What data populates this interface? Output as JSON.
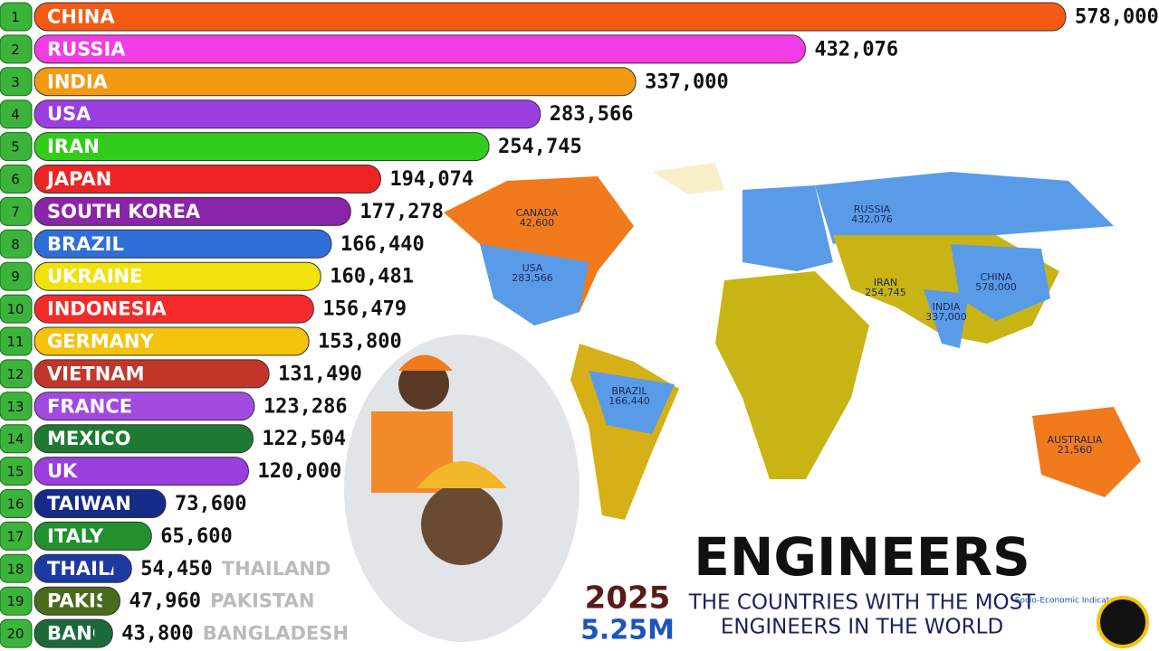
{
  "chart_data": {
    "type": "bar",
    "orientation": "horizontal",
    "title": "ENGINEERS",
    "subtitle": [
      "THE COUNTRIES WITH THE MOST",
      "ENGINEERS IN THE WORLD"
    ],
    "year": "2025",
    "total": "5.25M",
    "logo_text": "Socio-Economic Indicators",
    "ranks": [
      1,
      2,
      3,
      4,
      5,
      6,
      7,
      8,
      9,
      10,
      11,
      12,
      13,
      14,
      15,
      16,
      17,
      18,
      19,
      20
    ],
    "categories": [
      "CHINA",
      "RUSSIA",
      "INDIA",
      "USA",
      "IRAN",
      "JAPAN",
      "SOUTH KOREA",
      "BRAZIL",
      "UKRAINE",
      "INDONESIA",
      "GERMANY",
      "VIETNAM",
      "FRANCE",
      "MEXICO",
      "UK",
      "TAIWAN",
      "ITALY",
      "THAILAND",
      "PAKISTAN",
      "BANGLADESH"
    ],
    "values": [
      578000,
      432076,
      337000,
      283566,
      254745,
      194074,
      177278,
      166440,
      160481,
      156479,
      153800,
      131490,
      123286,
      122504,
      120000,
      73600,
      65600,
      54450,
      47960,
      43800
    ],
    "value_labels": [
      "578,000",
      "432,076",
      "337,000",
      "283,566",
      "254,745",
      "194,074",
      "177,278",
      "166,440",
      "160,481",
      "156,479",
      "153,800",
      "131,490",
      "123,286",
      "122,504",
      "120,000",
      "73,600",
      "65,600",
      "54,450",
      "47,960",
      "43,800"
    ],
    "colors": [
      "#f55a14",
      "#f23ce6",
      "#f39a12",
      "#9b3ee0",
      "#32cc1c",
      "#ee2424",
      "#8a24a8",
      "#2f6ed8",
      "#f2e20c",
      "#f52a2a",
      "#f5c20c",
      "#c2362a",
      "#a24ae0",
      "#1e7a32",
      "#9b3ee0",
      "#162a8a",
      "#22902e",
      "#1c3aa2",
      "#4a6a1e",
      "#1c6a3a"
    ],
    "xlim": [
      0,
      578000
    ],
    "annotations": [
      {
        "country": "CANADA",
        "figure": "42,600"
      },
      {
        "country": "USA",
        "figure": "283,566"
      },
      {
        "country": "RUSSIA",
        "figure": "432,076"
      },
      {
        "country": "CHINA",
        "figure": "578,000"
      },
      {
        "country": "INDIA",
        "figure": "337,000"
      },
      {
        "country": "IRAN",
        "figure": "254,745"
      },
      {
        "country": "BRAZIL",
        "figure": "166,440"
      },
      {
        "country": "AUSTRALIA",
        "figure": "21,560"
      }
    ]
  }
}
